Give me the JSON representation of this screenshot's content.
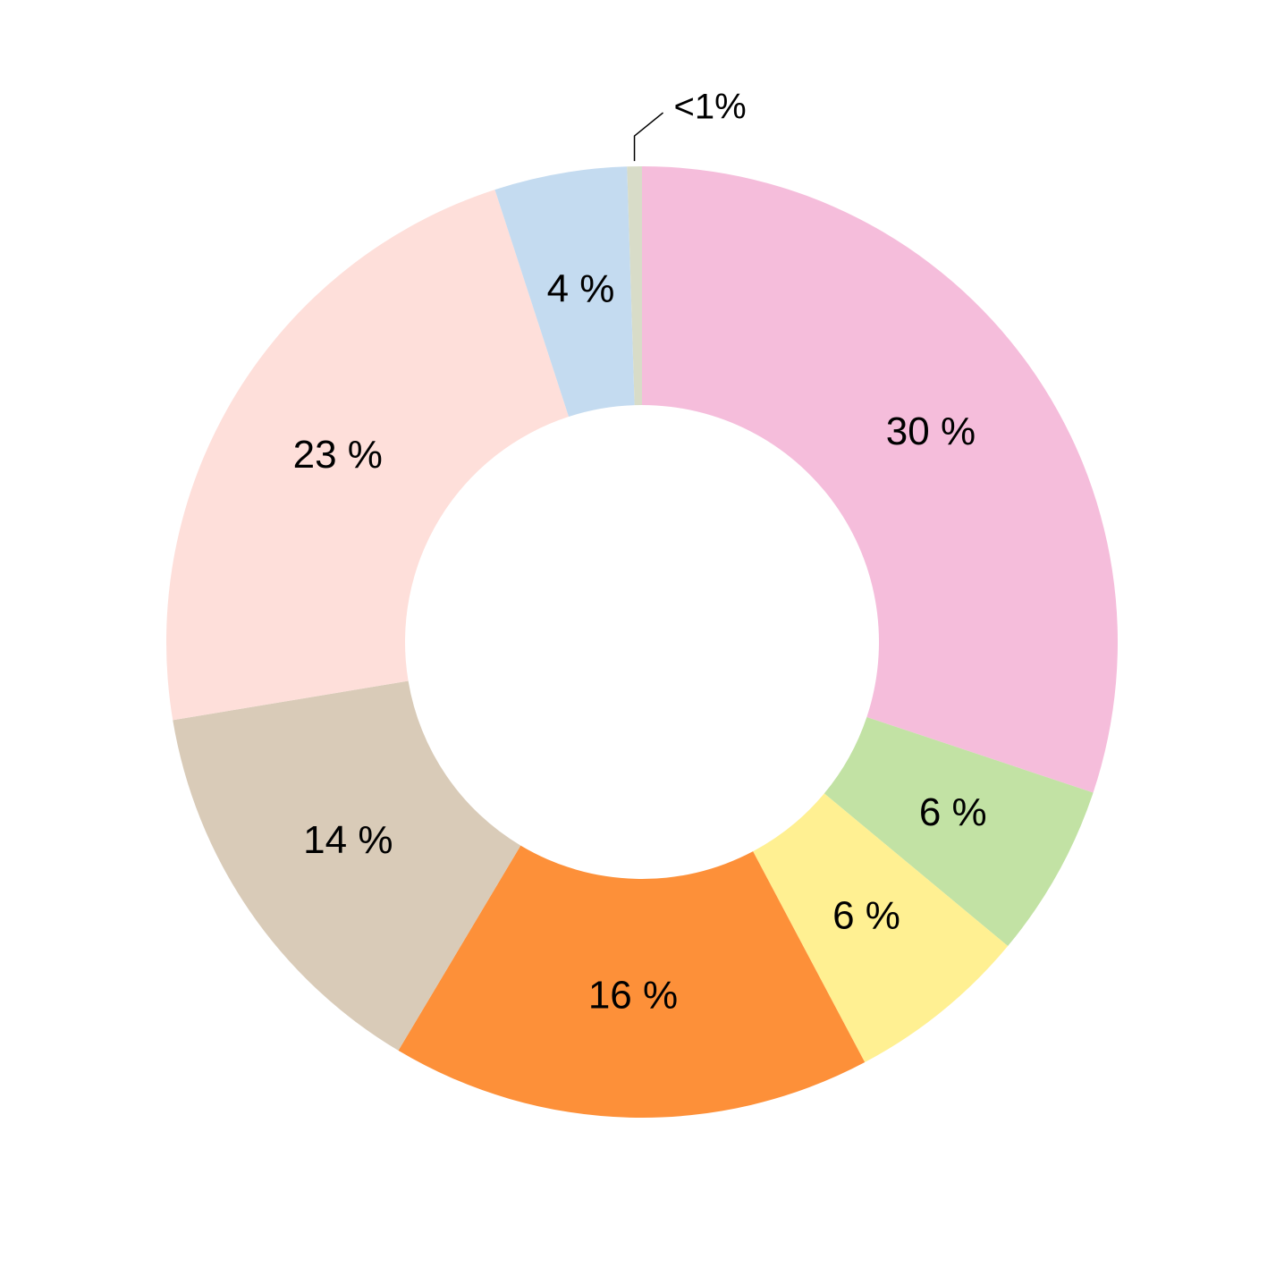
{
  "chart_data": {
    "type": "pie",
    "variant": "donut",
    "slices": [
      {
        "label": "30 %",
        "value": 30.1,
        "color": "#f5bddb"
      },
      {
        "label": "6 %",
        "value": 5.9,
        "color": "#c2e2a4"
      },
      {
        "label": "6 %",
        "value": 6.2,
        "color": "#fff092"
      },
      {
        "label": "16 %",
        "value": 16.3,
        "color": "#fd9039"
      },
      {
        "label": "14 %",
        "value": 13.8,
        "color": "#d9cbb8"
      },
      {
        "label": "23 %",
        "value": 22.6,
        "color": "#fedfda"
      },
      {
        "label": "4 %",
        "value": 4.5,
        "color": "#c4dbf0"
      },
      {
        "label": "<1%",
        "value": 0.5,
        "color": "#d8dcc8"
      }
    ],
    "start_angle": "12 o'clock",
    "direction": "clockwise",
    "callout_labels": [
      "<1%"
    ]
  }
}
